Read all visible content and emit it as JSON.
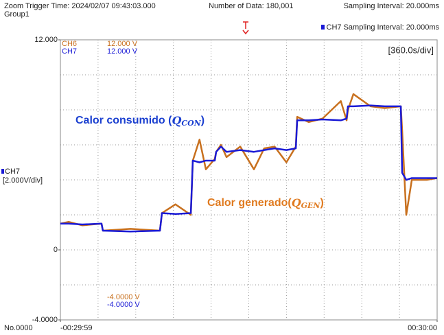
{
  "header": {
    "trigger": "Zoom Trigger Time: 2024/02/07 09:43:03.000",
    "group": "Group1",
    "count": "Number of Data: 180,001",
    "sampling": "Sampling Interval: 20.000ms",
    "ch7_sampling": "CH7 Sampling Interval: 20.000ms"
  },
  "footer": {
    "number": "No.0000"
  },
  "chart_data": {
    "type": "line",
    "x_scale_label": "[360.0s/div]",
    "y_axis_label": {
      "channel": "CH7",
      "scale": "[2.000V/div]"
    },
    "x": [
      -1799,
      -1720,
      -1589,
      -1406,
      -1393,
      -1130,
      -848,
      -829,
      -700,
      -553,
      -534,
      -470,
      -409,
      -324,
      -311,
      -265,
      -212,
      -81,
      50,
      148,
      247,
      360,
      450,
      463,
      574,
      705,
      880,
      935,
      948,
      1000,
      1164,
      1300,
      1453,
      1466,
      1505,
      1558,
      1700,
      1800
    ],
    "series": [
      {
        "name": "CH6",
        "color": "#c8701e",
        "top_label": "12.000 V",
        "bottom_label": "-4.0000 V",
        "values": [
          1.5,
          1.6,
          1.4,
          1.5,
          1.1,
          1.2,
          1.1,
          2.1,
          2.6,
          2.0,
          5.1,
          6.3,
          4.6,
          5.2,
          5.6,
          6.0,
          5.3,
          5.9,
          4.6,
          5.8,
          5.9,
          5.0,
          5.9,
          7.6,
          7.3,
          7.5,
          8.5,
          7.4,
          8.0,
          8.9,
          8.2,
          8.1,
          8.2,
          6.8,
          2.0,
          4.0,
          4.0,
          4.1
        ]
      },
      {
        "name": "CH7",
        "color": "#1a1ad6",
        "top_label": "12.000 V",
        "bottom_label": "-4.0000 V",
        "values": [
          1.5,
          1.5,
          1.45,
          1.5,
          1.1,
          1.05,
          1.1,
          2.1,
          2.05,
          2.1,
          5.1,
          5.0,
          5.1,
          5.1,
          5.6,
          5.9,
          5.6,
          5.7,
          5.6,
          5.7,
          5.8,
          5.7,
          5.8,
          7.4,
          7.4,
          7.45,
          7.4,
          7.5,
          8.2,
          8.2,
          8.25,
          8.2,
          8.2,
          4.4,
          4.0,
          4.1,
          4.1,
          4.1
        ]
      }
    ],
    "xlim": [
      -1799,
      1800
    ],
    "xticks": [
      {
        "value": -1799,
        "label": "-00:29:59"
      },
      {
        "value": 1800,
        "label": "00:30:00"
      }
    ],
    "xgrid": [
      -1439.1,
      -1079.2,
      -719.3,
      -359.4,
      0.5,
      360.4,
      720.3,
      1080.2,
      1440.1
    ],
    "ylim": [
      -4,
      12
    ],
    "yticks": [
      {
        "value": 12,
        "label": "12.000"
      },
      0,
      {
        "value": -4,
        "label": "-4.0000"
      }
    ],
    "ygrid": [
      -2,
      0,
      2,
      4,
      6,
      8,
      10
    ],
    "annotations": [
      {
        "text": "Calor consumido (",
        "symbol": "Q",
        "subscript": "CON",
        "end": ")",
        "color": "#1a3fd0"
      },
      {
        "text": "Calor generado(",
        "symbol": "Q",
        "subscript": "GEN",
        "end": ")",
        "color": "#e07a1f"
      }
    ]
  }
}
